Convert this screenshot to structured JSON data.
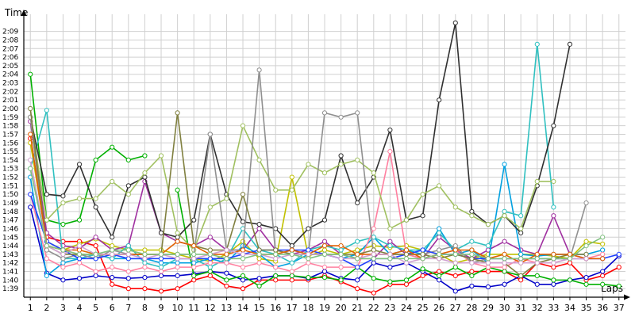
{
  "chart_data": {
    "type": "line",
    "xlabel": "Laps",
    "ylabel": "Time",
    "x": [
      1,
      2,
      3,
      4,
      5,
      6,
      7,
      8,
      9,
      10,
      11,
      12,
      13,
      14,
      15,
      16,
      17,
      18,
      19,
      20,
      21,
      22,
      23,
      24,
      25,
      26,
      27,
      28,
      29,
      30,
      31,
      32,
      33,
      34,
      35,
      36,
      37
    ],
    "x_tick_labels": [
      "1",
      "2",
      "3",
      "4",
      "5",
      "6",
      "7",
      "8",
      "9",
      "10",
      "11",
      "12",
      "13",
      "14",
      "15",
      "16",
      "17",
      "18",
      "19",
      "20",
      "21",
      "22",
      "23",
      "24",
      "25",
      "26",
      "27",
      "28",
      "29",
      "30",
      "31",
      "32",
      "33",
      "34",
      "35",
      "36",
      "37"
    ],
    "y_tick_labels": [
      "1:39",
      "1:40",
      "1:41",
      "1:42",
      "1:43",
      "1:44",
      "1:45",
      "1:46",
      "1:47",
      "1:48",
      "1:49",
      "1:50",
      "1:51",
      "1:52",
      "1:53",
      "1:54",
      "1:55",
      "1:56",
      "1:57",
      "1:58",
      "1:59",
      "2:00",
      "2:01",
      "2:02",
      "2:03",
      "2:04",
      "2:05",
      "2:06",
      "2:07",
      "2:08",
      "2:09"
    ],
    "y_tick_values": [
      99,
      100,
      101,
      102,
      103,
      104,
      105,
      106,
      107,
      108,
      109,
      110,
      111,
      112,
      113,
      114,
      115,
      116,
      117,
      118,
      119,
      120,
      121,
      122,
      123,
      124,
      125,
      126,
      127,
      128,
      129
    ],
    "y_unit": "seconds",
    "xlim": [
      0.6,
      37.4
    ],
    "ylim": [
      98,
      131
    ],
    "grid": true,
    "legend": "none",
    "series": [
      {
        "color": "#ff0000",
        "values": [
          116.5,
          105,
          104.5,
          104.5,
          104,
          99.5,
          99,
          99,
          98.7,
          99,
          100,
          100.5,
          99.3,
          99,
          100,
          100,
          100,
          100,
          100.5,
          99.8,
          99,
          98.5,
          99.5,
          99.5,
          100.5,
          101,
          100.5,
          101,
          101,
          101,
          100,
          102,
          101.5,
          102,
          100,
          100.5,
          101.5
        ]
      },
      {
        "color": "#0000c8",
        "values": [
          108.5,
          100.8,
          100,
          100.2,
          100.5,
          100.3,
          100.2,
          100.3,
          100.5,
          100.5,
          100.7,
          101,
          100.8,
          100,
          100.2,
          100.5,
          100.5,
          100.2,
          101,
          100.2,
          100,
          102,
          101.5,
          102,
          101,
          100,
          98.7,
          99.3,
          99.2,
          99.5,
          100.5,
          99.5,
          99.5,
          100,
          100.3,
          101,
          102.8
        ]
      },
      {
        "color": "#00b000",
        "values": [
          124,
          107,
          106.5,
          107,
          114,
          115.5,
          114,
          114.5,
          null,
          110.5,
          100.5,
          101,
          100,
          100.5,
          99.3,
          100.5,
          100.5,
          100.3,
          100.3,
          100,
          101.5,
          100.2,
          99.8,
          100,
          101.3,
          100.5,
          101.5,
          100.5,
          101.5,
          101,
          100.5,
          100.5,
          100,
          100,
          99.5,
          99.5,
          99.3
        ]
      },
      {
        "color": "#c0c000",
        "values": [
          116,
          104.5,
          103.5,
          104.2,
          104.8,
          104,
          103.5,
          103.5,
          103.5,
          103,
          102.5,
          102.2,
          103,
          104.5,
          102.5,
          102.2,
          112,
          102.8,
          103.5,
          103,
          103.5,
          104,
          103.8,
          104,
          103.5,
          103,
          102,
          102.5,
          103,
          103,
          103,
          103,
          102.8,
          102.5,
          104.5,
          104.2,
          null
        ]
      },
      {
        "color": "#a030a0",
        "values": [
          118.5,
          105.5,
          104,
          103.7,
          105,
          103.5,
          104,
          111.5,
          105.5,
          104.5,
          104,
          105,
          103.5,
          103.5,
          106,
          103.5,
          103,
          103.5,
          104.5,
          103,
          102.5,
          102.5,
          104.5,
          103,
          102.5,
          105,
          103.5,
          102.5,
          103.5,
          104.5,
          103.5,
          103,
          107.5,
          103,
          102.5,
          102.5,
          null
        ]
      },
      {
        "color": "#00a0e0",
        "values": [
          112,
          100.5,
          102,
          102.5,
          103,
          102.5,
          102.5,
          102.5,
          102,
          102,
          102,
          102.5,
          102,
          104,
          103,
          101.5,
          102,
          103,
          103,
          102.5,
          103,
          105,
          103,
          103.5,
          103,
          106,
          103,
          103.5,
          102,
          113.5,
          103,
          102.8,
          103,
          103,
          103,
          103.5,
          null
        ]
      },
      {
        "color": "#30c0c0",
        "values": [
          113,
          119.8,
          102.5,
          102.5,
          103,
          102.5,
          104,
          102,
          101.5,
          102.5,
          102.5,
          101.5,
          102.5,
          106,
          103.5,
          103,
          102,
          103.5,
          104,
          103.5,
          104.5,
          105,
          104,
          103.5,
          103.5,
          105.5,
          103.5,
          104.5,
          104,
          108,
          107.5,
          127.5,
          108.5,
          null,
          null,
          null,
          null
        ]
      },
      {
        "color": "#303030",
        "values": [
          119,
          110,
          109.8,
          113.5,
          108.5,
          105,
          111,
          112,
          105.5,
          105,
          107,
          117,
          110,
          106.8,
          106.5,
          106,
          104,
          106,
          107,
          114.5,
          109,
          112,
          117.5,
          107,
          107.5,
          121,
          130,
          108,
          106.5,
          107.5,
          105.5,
          111,
          118,
          127.5,
          null,
          null,
          null
        ]
      },
      {
        "color": "#ff80a0",
        "values": [
          110,
          102.5,
          101.5,
          102,
          101,
          101.5,
          101,
          101.5,
          101,
          101.5,
          101.5,
          102,
          102,
          101.5,
          102,
          101.5,
          101,
          102,
          101.5,
          101.5,
          101.5,
          106,
          115,
          103,
          102.5,
          103,
          103.5,
          102,
          101.5,
          101.5,
          102.5,
          102,
          102,
          102.5,
          102.5,
          103,
          null
        ]
      },
      {
        "color": "#a0c060",
        "values": [
          119,
          107,
          109,
          109.5,
          109.5,
          111.5,
          110,
          112.5,
          114.5,
          105.5,
          103.5,
          108.5,
          109.5,
          118,
          114,
          110.5,
          110.5,
          113.5,
          112.5,
          113.5,
          114,
          112.5,
          106,
          107,
          110,
          111,
          108.5,
          107.5,
          106.5,
          107.5,
          106,
          111.5,
          111.5,
          null,
          null,
          null,
          null
        ]
      },
      {
        "color": "#909090",
        "values": [
          119,
          103.5,
          102.5,
          103,
          102.5,
          103.5,
          103,
          103,
          103,
          103,
          103,
          117,
          103.5,
          103.5,
          124.5,
          103,
          103.5,
          103,
          119.5,
          119,
          119.5,
          103,
          103,
          103,
          103,
          103.5,
          104,
          102,
          102.5,
          102.5,
          102.5,
          102.5,
          102.5,
          102.5,
          109,
          null,
          null
        ]
      },
      {
        "color": "#2040ff",
        "values": [
          110,
          104.5,
          103.5,
          102.5,
          102.5,
          103,
          102.5,
          102.5,
          102.5,
          102.5,
          102.5,
          102.5,
          102.5,
          103,
          103.5,
          103.5,
          103.5,
          103.5,
          103,
          102.5,
          101.5,
          102.5,
          102.5,
          103,
          103.5,
          103,
          103,
          102.5,
          102.5,
          102.5,
          102.5,
          102.5,
          102.5,
          102.5,
          102.5,
          102.5,
          103
        ]
      },
      {
        "color": "#808040",
        "values": [
          120,
          104,
          103,
          103,
          103,
          103,
          103,
          103,
          103,
          119.5,
          104,
          103.5,
          103.5,
          110,
          103.5,
          103.5,
          103,
          103,
          103,
          103,
          103,
          103.5,
          103,
          103,
          103,
          102.5,
          103,
          102.5,
          102,
          102,
          100.5,
          102,
          102.5,
          103,
          103,
          null,
          null
        ]
      },
      {
        "color": "#e06000",
        "values": [
          117,
          104,
          103.5,
          103.5,
          103,
          103,
          103,
          103,
          103,
          104.5,
          104,
          103,
          103,
          103.5,
          103,
          103,
          103.5,
          103,
          104,
          104,
          103,
          103,
          103,
          103.5,
          102.5,
          103,
          103.5,
          103.5,
          102.5,
          103,
          102,
          103,
          103,
          103,
          102.5,
          102.5,
          null
        ]
      },
      {
        "color": "#d0a0d0",
        "values": [
          114,
          104,
          103,
          104,
          103,
          103,
          103,
          102.5,
          103,
          102.5,
          102.5,
          103,
          103.5,
          103,
          103,
          102.5,
          103,
          103,
          103,
          102.5,
          102.5,
          103,
          103,
          102,
          102.5,
          102.5,
          102,
          102,
          102,
          102,
          102,
          102,
          102,
          102.5,
          102.5,
          null,
          null
        ]
      },
      {
        "color": "#80c080",
        "values": [
          113,
          104,
          103.5,
          103,
          103,
          103.5,
          103.5,
          103,
          103,
          103,
          103,
          103,
          102.5,
          102.5,
          103,
          103,
          103,
          102.5,
          103,
          103,
          102.5,
          102.5,
          102.5,
          102.5,
          102.5,
          103,
          103,
          103,
          102.5,
          102.5,
          102.5,
          102.5,
          102.5,
          102.5,
          104,
          105,
          null
        ]
      }
    ]
  }
}
